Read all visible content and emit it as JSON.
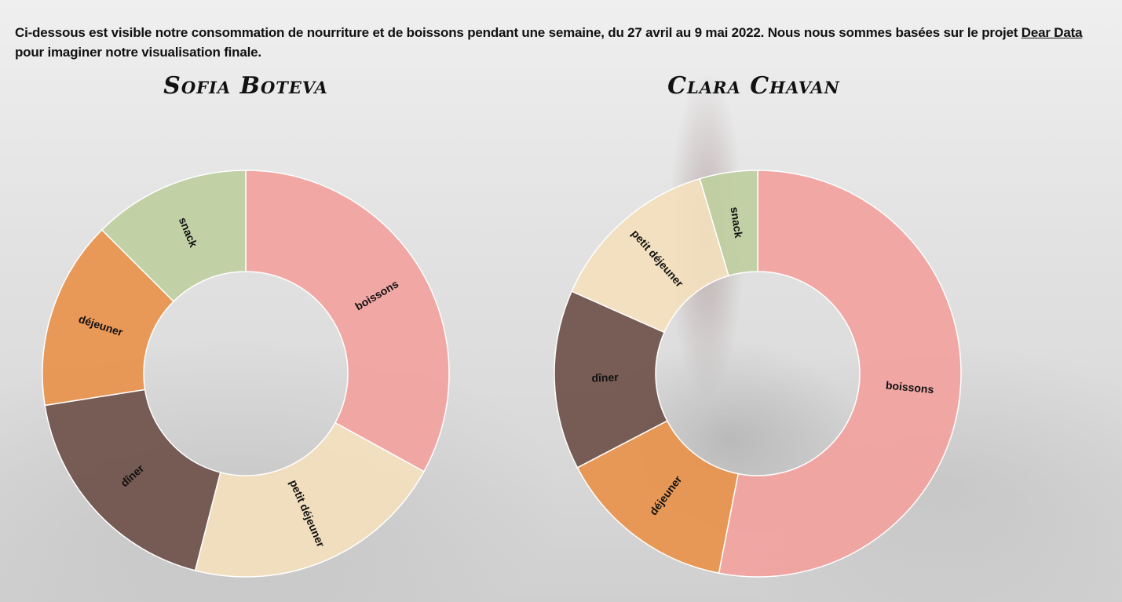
{
  "intro": {
    "text_before": "Ci-dessous est visible notre consommation de nourriture et de boissons pendant une semaine, du 27 avril au 9 mai 2022. Nous nous sommes basées sur le projet ",
    "link_text": "Dear Data",
    "text_after": " pour imaginer notre visualisation finale."
  },
  "colors": {
    "boissons": "#f2a39f",
    "petit_dejeuner": "#f3dfbd",
    "diner": "#6e5149",
    "dejeuner": "#e9924b",
    "snack": "#bfcf9f"
  },
  "chart_data": [
    {
      "type": "pie",
      "title": "Sofia Boteva",
      "slices": [
        {
          "label": "boissons",
          "value": 33,
          "color": "#f2a39f"
        },
        {
          "label": "petit déjeuner",
          "value": 21,
          "color": "#f3dfbd"
        },
        {
          "label": "dîner",
          "value": 18.5,
          "color": "#6e5149"
        },
        {
          "label": "déjeuner",
          "value": 15,
          "color": "#e9924b"
        },
        {
          "label": "snack",
          "value": 12.5,
          "color": "#bfcf9f"
        }
      ]
    },
    {
      "type": "pie",
      "title": "Clara Chavan",
      "slices": [
        {
          "label": "boissons",
          "value": 52,
          "color": "#f2a39f"
        },
        {
          "label": "déjeuner",
          "value": 14,
          "color": "#e9924b"
        },
        {
          "label": "dîner",
          "value": 14,
          "color": "#6e5149"
        },
        {
          "label": "petit déjeuner",
          "value": 13.5,
          "color": "#f3dfbd"
        },
        {
          "label": "snack",
          "value": 4.5,
          "color": "#bfcf9f"
        }
      ]
    }
  ]
}
